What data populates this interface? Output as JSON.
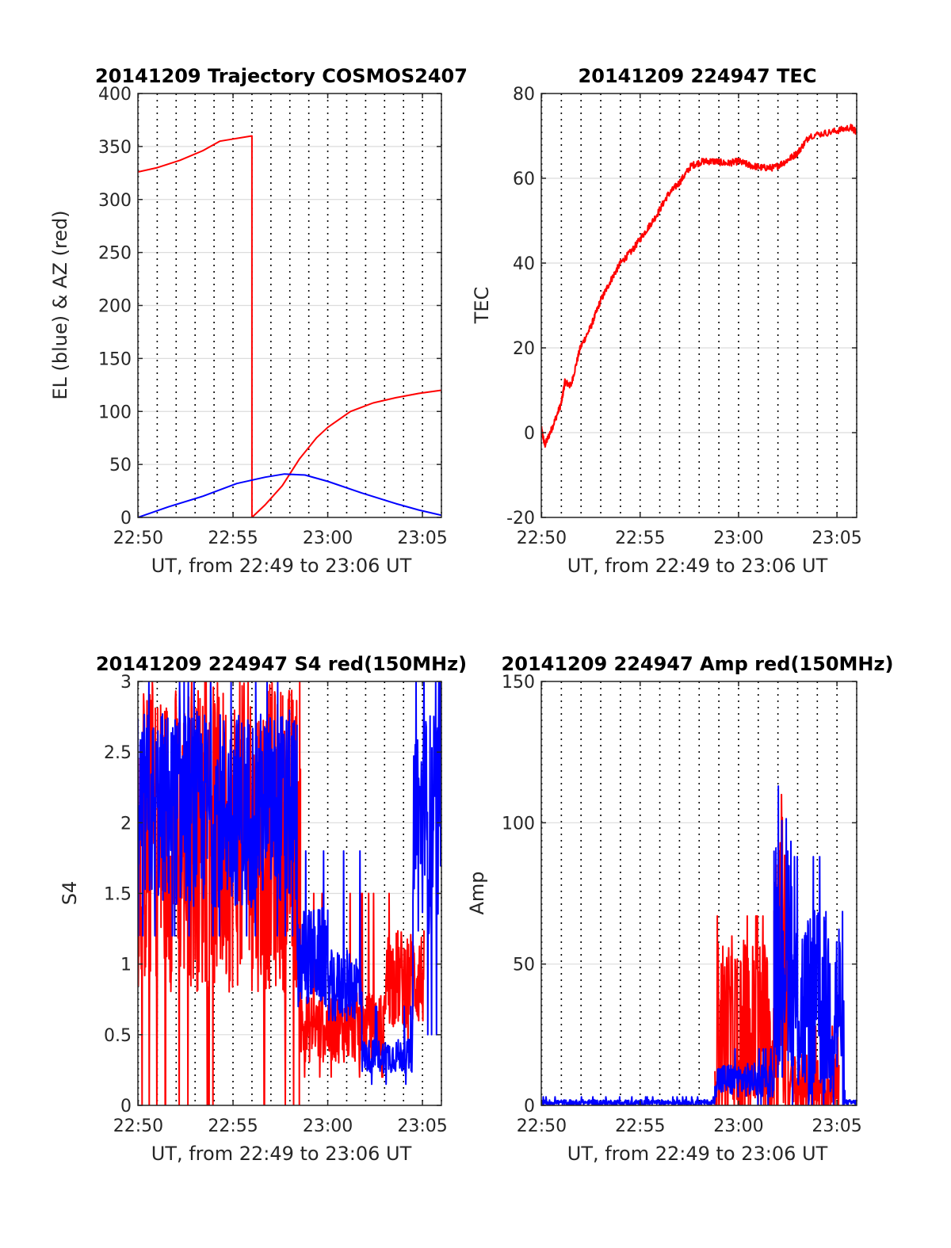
{
  "figure": {
    "background": "#ffffff",
    "colors": {
      "red": "#ff0000",
      "blue": "#0000ff",
      "grid": "#dcdcdc",
      "axis": "#262626"
    }
  },
  "chart_data": [
    {
      "id": "trajectory",
      "type": "line",
      "title": "20141209 Trajectory COSMOS2407",
      "xlabel": "UT, from 22:49 to 23:06 UT",
      "ylabel": "EL (blue) & AZ (red)",
      "xlim": [
        22.833,
        23.1
      ],
      "ylim": [
        0,
        400
      ],
      "xticks": [
        22.8333,
        22.9167,
        23.0,
        23.0833
      ],
      "xtick_labels": [
        "22:50",
        "22:55",
        "23:00",
        "23:05"
      ],
      "yticks": [
        0,
        50,
        100,
        150,
        200,
        250,
        300,
        350,
        400
      ],
      "ytick_labels": [
        "0",
        "50",
        "100",
        "150",
        "200",
        "250",
        "300",
        "350",
        "400"
      ],
      "grid": true,
      "dotted_minutes": true,
      "series": [
        {
          "color": "#ff0000",
          "points": [
            [
              22.833,
              326
            ],
            [
              22.85,
              330
            ],
            [
              22.87,
              337
            ],
            [
              22.89,
              346
            ],
            [
              22.905,
              355
            ],
            [
              22.9333,
              360
            ],
            [
              22.9333,
              0
            ],
            [
              22.945,
              12
            ],
            [
              22.96,
              30
            ],
            [
              22.975,
              55
            ],
            [
              22.99,
              75
            ],
            [
              23.0,
              85
            ],
            [
              23.02,
              100
            ],
            [
              23.04,
              108
            ],
            [
              23.06,
              113
            ],
            [
              23.08,
              117
            ],
            [
              23.1,
              120
            ]
          ]
        },
        {
          "color": "#0000ff",
          "points": [
            [
              22.833,
              0
            ],
            [
              22.86,
              10
            ],
            [
              22.89,
              20
            ],
            [
              22.92,
              32
            ],
            [
              22.945,
              38
            ],
            [
              22.962,
              41
            ],
            [
              22.98,
              40
            ],
            [
              23.0,
              34
            ],
            [
              23.03,
              23
            ],
            [
              23.06,
              13
            ],
            [
              23.08,
              7
            ],
            [
              23.1,
              2
            ]
          ]
        }
      ]
    },
    {
      "id": "tec",
      "type": "line",
      "title": "20141209 224947 TEC",
      "xlabel": "UT, from 22:49 to 23:06 UT",
      "ylabel": "TEC",
      "xlim": [
        22.833,
        23.1
      ],
      "ylim": [
        -20,
        80
      ],
      "xticks": [
        22.8333,
        22.9167,
        23.0,
        23.0833
      ],
      "xtick_labels": [
        "22:50",
        "22:55",
        "23:00",
        "23:05"
      ],
      "yticks": [
        -20,
        0,
        20,
        40,
        60,
        80
      ],
      "ytick_labels": [
        "-20",
        "0",
        "20",
        "40",
        "60",
        "80"
      ],
      "grid": true,
      "dotted_minutes": true,
      "series": [
        {
          "color": "#ff0000",
          "points": [
            [
              22.833,
              1
            ],
            [
              22.836,
              -3
            ],
            [
              22.842,
              1
            ],
            [
              22.85,
              7
            ],
            [
              22.853,
              12
            ],
            [
              22.858,
              11
            ],
            [
              22.866,
              20
            ],
            [
              22.875,
              25
            ],
            [
              22.883,
              31
            ],
            [
              22.892,
              36
            ],
            [
              22.9,
              40
            ],
            [
              22.91,
              43
            ],
            [
              22.92,
              47
            ],
            [
              22.93,
              51
            ],
            [
              22.94,
              56
            ],
            [
              22.95,
              59
            ],
            [
              22.96,
              63
            ],
            [
              22.97,
              64
            ],
            [
              22.98,
              64
            ],
            [
              22.99,
              63.5
            ],
            [
              23.0,
              64
            ],
            [
              23.01,
              63
            ],
            [
              23.02,
              62.5
            ],
            [
              23.03,
              62.5
            ],
            [
              23.04,
              64
            ],
            [
              23.05,
              66
            ],
            [
              23.06,
              70
            ],
            [
              23.08,
              71
            ],
            [
              23.095,
              72
            ],
            [
              23.1,
              71
            ]
          ]
        }
      ]
    },
    {
      "id": "s4",
      "type": "line",
      "title": "20141209 224947 S4 red(150MHz)",
      "xlabel": "UT, from 22:49 to 23:06 UT",
      "ylabel": "S4",
      "xlim": [
        22.833,
        23.1
      ],
      "ylim": [
        0,
        3
      ],
      "xticks": [
        22.8333,
        22.9167,
        23.0,
        23.0833
      ],
      "xtick_labels": [
        "22:50",
        "22:55",
        "23:00",
        "23:05"
      ],
      "yticks": [
        0,
        0.5,
        1,
        1.5,
        2,
        2.5,
        3
      ],
      "ytick_labels": [
        "0",
        "0.5",
        "1",
        "1.5",
        "2",
        "2.5",
        "3"
      ],
      "grid": true,
      "dotted_minutes": true,
      "series": [
        {
          "color": "#ff0000",
          "segments": [
            {
              "range": [
                22.833,
                22.976
              ],
              "base": 1.9,
              "amp": 1.1,
              "min": 0,
              "max": 3
            },
            {
              "range": [
                22.976,
                23.05
              ],
              "base": 0.55,
              "amp": 0.25,
              "min": 0.2,
              "max": 1.5
            },
            {
              "range": [
                23.05,
                23.085
              ],
              "base": 0.9,
              "amp": 0.35,
              "min": 0.4,
              "max": 1.5
            }
          ]
        },
        {
          "color": "#0000ff",
          "segments": [
            {
              "range": [
                22.833,
                22.973
              ],
              "base": 2.1,
              "amp": 0.7,
              "min": 1.2,
              "max": 3
            },
            {
              "range": [
                22.973,
                23.0
              ],
              "base": 1.05,
              "amp": 0.35,
              "min": 0.7,
              "max": 1.8
            },
            {
              "range": [
                23.0,
                23.03
              ],
              "base": 0.85,
              "amp": 0.25,
              "min": 0.6,
              "max": 1.8
            },
            {
              "range": [
                23.03,
                23.075
              ],
              "base": 0.35,
              "amp": 0.12,
              "min": 0.15,
              "max": 0.7
            },
            {
              "range": [
                23.075,
                23.1
              ],
              "base": 2.0,
              "amp": 0.8,
              "min": 0.5,
              "max": 3
            }
          ]
        }
      ]
    },
    {
      "id": "amp",
      "type": "line",
      "title": "20141209 224947 Amp red(150MHz)",
      "xlabel": "UT, from 22:49 to 23:06 UT",
      "ylabel": "Amp",
      "xlim": [
        22.833,
        23.1
      ],
      "ylim": [
        0,
        150
      ],
      "xticks": [
        22.8333,
        22.9167,
        23.0,
        23.0833
      ],
      "xtick_labels": [
        "22:50",
        "22:55",
        "23:00",
        "23:05"
      ],
      "yticks": [
        0,
        50,
        100,
        150
      ],
      "ytick_labels": [
        "0",
        "50",
        "100",
        "150"
      ],
      "grid": true,
      "dotted_minutes": true,
      "series": [
        {
          "color": "#ff0000",
          "segments": [
            {
              "range": [
                22.98,
                23.03
              ],
              "base": 25,
              "amp": 35,
              "min": 0,
              "max": 67
            },
            {
              "range": [
                23.03,
                23.042
              ],
              "base": 45,
              "amp": 60,
              "min": 0,
              "max": 110
            },
            {
              "range": [
                23.042,
                23.085
              ],
              "base": 6,
              "amp": 12,
              "min": 0,
              "max": 28
            }
          ]
        },
        {
          "color": "#0000ff",
          "segments": [
            {
              "range": [
                22.833,
                22.98
              ],
              "base": 1,
              "amp": 1,
              "min": 0,
              "max": 3
            },
            {
              "range": [
                22.98,
                23.03
              ],
              "base": 9,
              "amp": 6,
              "min": 0,
              "max": 20
            },
            {
              "range": [
                23.03,
                23.045
              ],
              "base": 60,
              "amp": 45,
              "min": 10,
              "max": 113
            },
            {
              "range": [
                23.045,
                23.09
              ],
              "base": 35,
              "amp": 35,
              "min": 0,
              "max": 88
            },
            {
              "range": [
                23.09,
                23.1
              ],
              "base": 1,
              "amp": 1,
              "min": 0,
              "max": 3
            }
          ]
        }
      ]
    }
  ]
}
